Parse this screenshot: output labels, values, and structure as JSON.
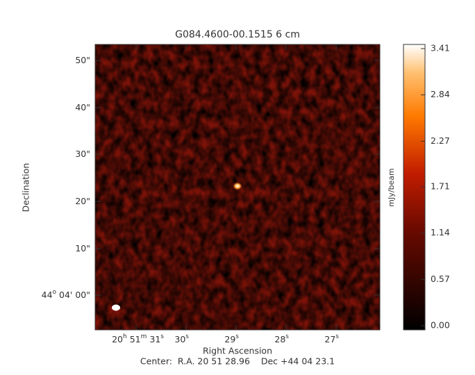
{
  "chart_data": {
    "type": "image",
    "title": "G084.4600-00.1515 6 cm",
    "xlabel": "Right Ascension",
    "ylabel": "Declination",
    "x_tick_labels": [
      [
        "20",
        "h",
        " 51",
        "m",
        " 31",
        "s"
      ],
      [
        "30",
        "s"
      ],
      [
        "29",
        "s"
      ],
      [
        "28",
        "s"
      ],
      [
        "27",
        "s"
      ]
    ],
    "y_tick_labels": [
      [
        "50\""
      ],
      [
        "40\""
      ],
      [
        "30\""
      ],
      [
        "20\""
      ],
      [
        "10\""
      ],
      [
        "44",
        "o",
        " 04' 00\""
      ]
    ],
    "colorbar": {
      "label": "mJy/beam",
      "lim": [
        0,
        3.41
      ],
      "ticks": [
        {
          "value": 0,
          "label": "0.00"
        },
        {
          "value": 0.57,
          "label": "0.57"
        },
        {
          "value": 1.14,
          "label": "1.14"
        },
        {
          "value": 1.71,
          "label": "1.71"
        },
        {
          "value": 2.27,
          "label": "2.27"
        },
        {
          "value": 2.84,
          "label": "2.84"
        },
        {
          "value": 3.41,
          "label": "3.41"
        }
      ]
    },
    "footer": "Center:  R.A. 20 51 28.96    Dec +44 04 23.1"
  }
}
